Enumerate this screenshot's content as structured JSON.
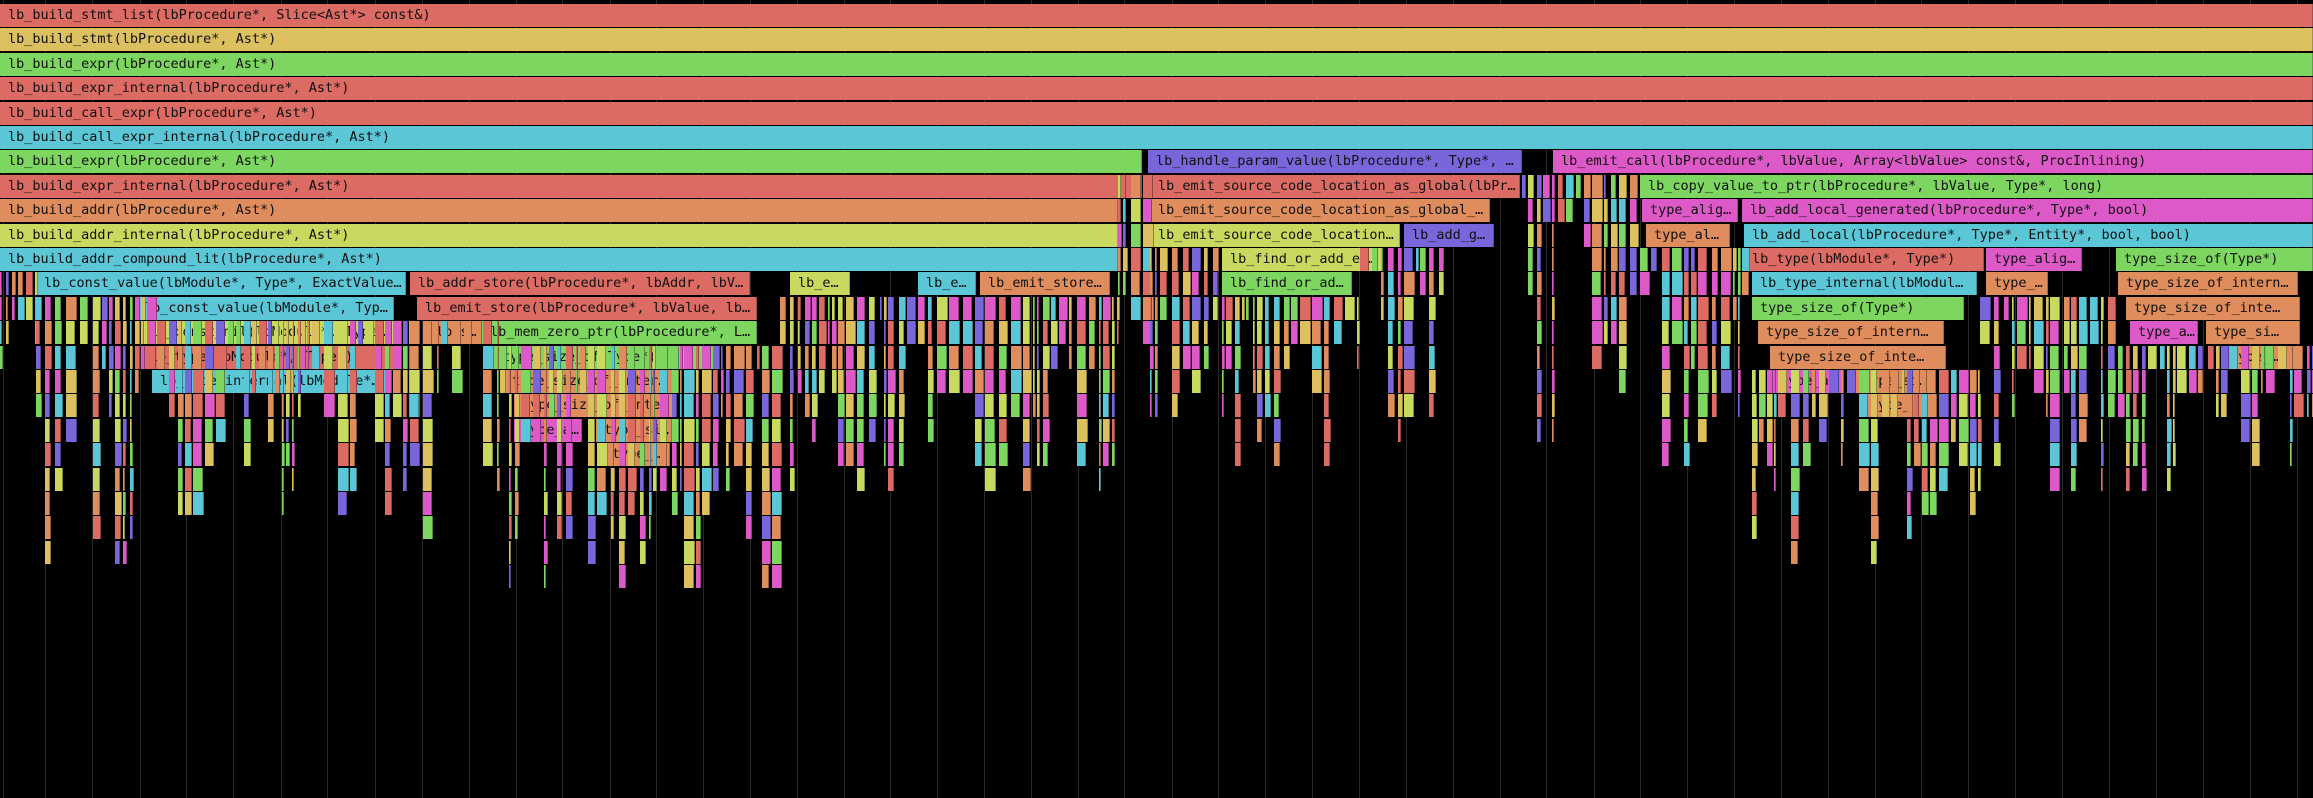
{
  "palette": {
    "red": "#dc6b64",
    "orange": "#df8d5d",
    "yellow": "#dcc05f",
    "green": "#7dd65f",
    "lime": "#c9d95f",
    "cyan": "#5bc6d6",
    "magenta": "#de59c8",
    "purple": "#7a66db"
  },
  "frames": [
    {
      "label": "lb_build_stmt_list(lbProcedure*, Slice<Ast*> const&)"
    },
    {
      "label": "lb_build_stmt(lbProcedure*, Ast*)"
    },
    {
      "label": "lb_build_expr(lbProcedure*, Ast*)"
    },
    {
      "label": "lb_build_expr_internal(lbProcedure*, Ast*)"
    },
    {
      "label": "lb_build_call_expr(lbProcedure*, Ast*)"
    },
    {
      "label": "lb_build_call_expr_internal(lbProcedure*, Ast*)"
    },
    {
      "label": "lb_build_expr(lbProcedure*, Ast*)"
    },
    {
      "label": "lb_handle_param_value(lbProcedure*, Type*, …"
    },
    {
      "label": "lb_emit_call(lbProcedure*, lbValue, Array<lbValue> const&, ProcInlining)"
    },
    {
      "label": "lb_build_expr_internal(lbProcedure*, Ast*)"
    },
    {
      "label": "lb_emit_source_code_location_as_global(lbPr…"
    },
    {
      "label": "lb_copy_value_to_ptr(lbProcedure*, lbValue, Type*, long)"
    },
    {
      "label": "lb_build_addr(lbProcedure*, Ast*)"
    },
    {
      "label": "lb_emit_source_code_location_as_global_p…"
    },
    {
      "label": "type_alig…"
    },
    {
      "label": "lb_add_local_generated(lbProcedure*, Type*, bool)"
    },
    {
      "label": "lb_build_addr_internal(lbProcedure*, Ast*)"
    },
    {
      "label": "lb_emit_source_code_location…"
    },
    {
      "label": "lb_add_g…"
    },
    {
      "label": "type_al…"
    },
    {
      "label": "lb_add_local(lbProcedure*, Type*, Entity*, bool, bool)"
    },
    {
      "label": "lb_build_addr_compound_lit(lbProcedure*, Ast*)"
    },
    {
      "label": "lb_find_or_add_en…"
    },
    {
      "label": "lb_type(lbModule*, Type*)"
    },
    {
      "label": "type_alig…"
    },
    {
      "label": "type_size_of(Type*)"
    },
    {
      "label": "lb_const_value(lbModule*, Type*, ExactValue…"
    },
    {
      "label": "lb_addr_store(lbProcedure*, lbAddr, lbVa…"
    },
    {
      "label": "lb_e…"
    },
    {
      "label": "lb_e…"
    },
    {
      "label": "lb_emit_store…"
    },
    {
      "label": "lb_find_or_ad…"
    },
    {
      "label": "lb_type_internal(lbModul…"
    },
    {
      "label": "type_a…"
    },
    {
      "label": "type_size_of_intern…"
    },
    {
      "label": "lb_const_value(lbModule*, Typ…"
    },
    {
      "label": "lb_emit_store(lbProcedure*, lbValue, lbV…"
    },
    {
      "label": "type_size_of(Type*)"
    },
    {
      "label": "type_size_of_inte…"
    },
    {
      "label": "lb_const_nil(lbModule*, Type…"
    },
    {
      "label": "lb_s…"
    },
    {
      "label": "lb_mem_zero_ptr(lbProcedure*, L…"
    },
    {
      "label": "type_size_of_intern…"
    },
    {
      "label": "type_a…"
    },
    {
      "label": "type_si…"
    },
    {
      "label": "lb_type(lbModule*, Type*)"
    },
    {
      "label": "type_size_of(Type*)"
    },
    {
      "label": "type_size_of_inte…"
    },
    {
      "label": "type_…"
    },
    {
      "label": "lb_type_internal(lbModule*…"
    },
    {
      "label": "type_size_of_intern…"
    },
    {
      "label": "type_a…"
    },
    {
      "label": "type_si…"
    },
    {
      "label": "type_size_of_inte…"
    },
    {
      "label": "type_…"
    },
    {
      "label": "type_a…"
    },
    {
      "label": "type_si…"
    },
    {
      "label": "type_…"
    }
  ]
}
